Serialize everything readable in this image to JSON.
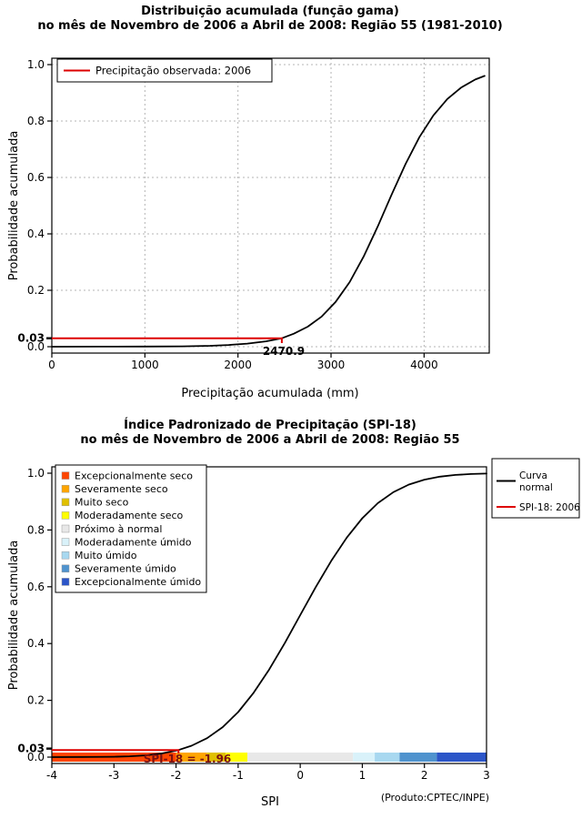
{
  "accent_red": "#dd0000",
  "chart_data": [
    {
      "type": "line",
      "title": "Distribuição acumulada (função gama)",
      "subtitle": "no mês de Novembro de 2006 a Abril de 2008: Região 55 (1981-2010)",
      "xlabel": "Precipitação acumulada (mm)",
      "ylabel": "Probabilidade acumulada",
      "xlim": [
        0,
        4700
      ],
      "ylim": [
        0,
        1
      ],
      "grid": true,
      "x_ticks": {
        "values": [
          0,
          1000,
          2000,
          3000,
          4000
        ],
        "labels": [
          "0",
          "1000",
          "2000",
          "3000",
          "4000"
        ]
      },
      "y_ticks": {
        "values": [
          0,
          0.2,
          0.4,
          0.6,
          0.8,
          1
        ],
        "labels": [
          "0.0",
          "0.2",
          "0.4",
          "0.6",
          "0.8",
          "1.0"
        ]
      },
      "special_tick": {
        "value": 0.03,
        "label": "0.03"
      },
      "legend": {
        "position": "top-left",
        "items": [
          {
            "label": "Precipitação observada: 2006",
            "color": "#dd0000",
            "type": "line"
          }
        ]
      },
      "series": [
        {
          "name": "Distribuição gama acumulada",
          "color": "#000000",
          "points": [
            [
              0,
              0.0001
            ],
            [
              500,
              0.0002
            ],
            [
              1000,
              0.0005
            ],
            [
              1400,
              0.0013
            ],
            [
              1700,
              0.0032
            ],
            [
              1900,
              0.006
            ],
            [
              2100,
              0.011
            ],
            [
              2300,
              0.019
            ],
            [
              2470.9,
              0.03
            ],
            [
              2600,
              0.046
            ],
            [
              2750,
              0.071
            ],
            [
              2900,
              0.107
            ],
            [
              3050,
              0.159
            ],
            [
              3200,
              0.229
            ],
            [
              3350,
              0.319
            ],
            [
              3500,
              0.425
            ],
            [
              3650,
              0.538
            ],
            [
              3800,
              0.647
            ],
            [
              3950,
              0.743
            ],
            [
              4100,
              0.82
            ],
            [
              4250,
              0.878
            ],
            [
              4400,
              0.919
            ],
            [
              4550,
              0.947
            ],
            [
              4650,
              0.96
            ]
          ]
        }
      ],
      "annotation": {
        "x": 2470.9,
        "y": 0.03,
        "label": "2470.9",
        "line_color": "#dd0000",
        "label_color": "#000000"
      }
    },
    {
      "type": "line",
      "title": "Índice Padronizado de Precipitação (SPI-18)",
      "subtitle": "no mês de Novembro de 2006 a Abril de 2008: Região 55",
      "xlabel": "SPI",
      "ylabel": "Probabilidade acumulada",
      "xlim": [
        -4,
        3
      ],
      "ylim": [
        0,
        1
      ],
      "grid": false,
      "x_ticks": {
        "values": [
          -4,
          -3,
          -2,
          -1,
          0,
          1,
          2,
          3
        ],
        "labels": [
          "-4",
          "-3",
          "-2",
          "-1",
          "0",
          "1",
          "2",
          "3"
        ]
      },
      "y_ticks": {
        "values": [
          0,
          0.2,
          0.4,
          0.6,
          0.8,
          1
        ],
        "labels": [
          "0.0",
          "0.2",
          "0.4",
          "0.6",
          "0.8",
          "1.0"
        ]
      },
      "special_tick": {
        "value": 0.03,
        "label": "0.03"
      },
      "series": [
        {
          "name": "Curva normal",
          "color": "#000000",
          "points": [
            [
              -4,
              0.0001
            ],
            [
              -3.5,
              0.0002
            ],
            [
              -3,
              0.0013
            ],
            [
              -2.75,
              0.003
            ],
            [
              -2.5,
              0.0062
            ],
            [
              -2.25,
              0.0122
            ],
            [
              -2,
              0.0228
            ],
            [
              -1.96,
              0.025
            ],
            [
              -1.75,
              0.0401
            ],
            [
              -1.5,
              0.0668
            ],
            [
              -1.25,
              0.1056
            ],
            [
              -1,
              0.1587
            ],
            [
              -0.75,
              0.2266
            ],
            [
              -0.5,
              0.3085
            ],
            [
              -0.25,
              0.4013
            ],
            [
              0,
              0.5
            ],
            [
              0.25,
              0.5987
            ],
            [
              0.5,
              0.6915
            ],
            [
              0.75,
              0.7734
            ],
            [
              1,
              0.8413
            ],
            [
              1.25,
              0.8944
            ],
            [
              1.5,
              0.9332
            ],
            [
              1.75,
              0.9599
            ],
            [
              2,
              0.9772
            ],
            [
              2.25,
              0.9878
            ],
            [
              2.5,
              0.9938
            ],
            [
              2.75,
              0.997
            ],
            [
              3,
              0.9987
            ]
          ]
        }
      ],
      "annotation": {
        "x": -1.96,
        "y": 0.025,
        "label": "SPI-18 = -1.96",
        "line_color": "#dd0000",
        "label_color": "#7b1010"
      },
      "categories": [
        {
          "label": "Excepcionalmente seco",
          "color": "#ff4500",
          "from": -4,
          "to": -2
        },
        {
          "label": "Severamente seco",
          "color": "#ffa500",
          "from": -2,
          "to": -1.5
        },
        {
          "label": "Muito seco",
          "color": "#e0c000",
          "from": -1.5,
          "to": -1.2
        },
        {
          "label": "Moderadamente seco",
          "color": "#ffff00",
          "from": -1.2,
          "to": -0.85
        },
        {
          "label": "Próximo à normal",
          "color": "#e8e8e8",
          "from": -0.85,
          "to": 0.85
        },
        {
          "label": "Moderadamente úmido",
          "color": "#d9f2fa",
          "from": 0.85,
          "to": 1.2
        },
        {
          "label": "Muito úmido",
          "color": "#a8d8f0",
          "from": 1.2,
          "to": 1.6
        },
        {
          "label": "Severamente úmido",
          "color": "#4f93ce",
          "from": 1.6,
          "to": 2.2
        },
        {
          "label": "Excepcionalmente úmido",
          "color": "#2b55c8",
          "from": 2.2,
          "to": 3
        }
      ],
      "legend_right": {
        "items": [
          {
            "label_lines": [
              "Curva",
              "normal"
            ],
            "color": "#000000"
          },
          {
            "label_lines": [
              "SPI-18: 2006"
            ],
            "color": "#dd0000"
          }
        ]
      },
      "credit": "(Produto:CPTEC/INPE)"
    }
  ]
}
